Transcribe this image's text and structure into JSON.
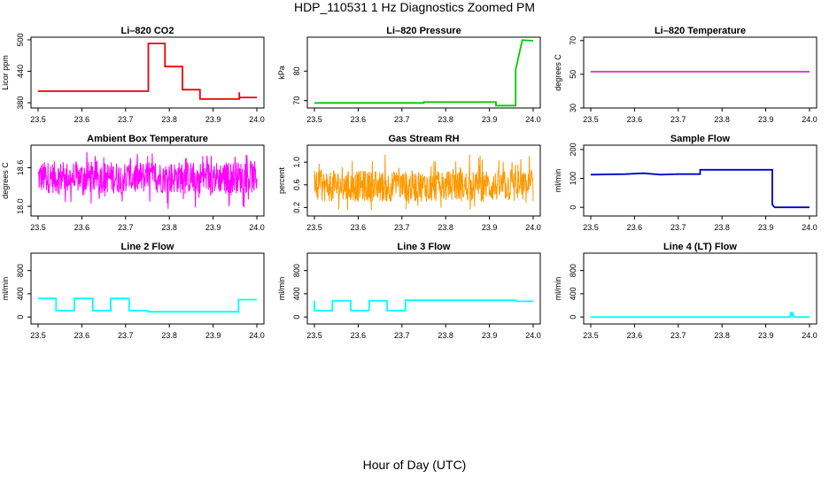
{
  "page": {
    "title": "HDP_110531  1 Hz Diagnostics Zoomed PM",
    "xlabel": "Hour of Day (UTC)"
  },
  "chart_data": [
    {
      "type": "line",
      "title": "Li–820 CO2",
      "xlabel": "",
      "ylabel": "Licor ppm",
      "xlim": [
        23.5,
        24.0
      ],
      "ylim": [
        370,
        505
      ],
      "x_ticks": [
        "23.5",
        "23.6",
        "23.7",
        "23.8",
        "23.9",
        "24.0"
      ],
      "y_ticks": [
        "380",
        "440",
        "500"
      ],
      "color": "#ee0000",
      "series": [
        {
          "x": [
            23.5,
            23.752,
            23.752,
            23.79,
            23.79,
            23.83,
            23.83,
            23.87,
            23.87,
            23.96,
            23.96,
            23.96,
            23.96,
            24.0
          ],
          "y": [
            402,
            402,
            493,
            493,
            449,
            449,
            405,
            405,
            387,
            387,
            400,
            393,
            390,
            390
          ]
        }
      ]
    },
    {
      "type": "line",
      "title": "Li–820 Pressure",
      "xlabel": "",
      "ylabel": "kPa",
      "xlim": [
        23.5,
        24.0
      ],
      "ylim": [
        67.5,
        91.5
      ],
      "x_ticks": [
        "23.5",
        "23.6",
        "23.7",
        "23.8",
        "23.9",
        "24.0"
      ],
      "y_ticks": [
        "70",
        "80"
      ],
      "color": "#00cc00",
      "series": [
        {
          "x": [
            23.5,
            23.75,
            23.75,
            23.915,
            23.915,
            23.96,
            23.96,
            23.975,
            24.0
          ],
          "y": [
            69.2,
            69.2,
            69.5,
            69.5,
            68.3,
            68.3,
            80.5,
            90.5,
            90.3
          ]
        }
      ]
    },
    {
      "type": "line",
      "title": "Li–820 Temperature",
      "xlabel": "",
      "ylabel": "degrees C",
      "xlim": [
        23.5,
        24.0
      ],
      "ylim": [
        30,
        72
      ],
      "x_ticks": [
        "23.5",
        "23.6",
        "23.7",
        "23.8",
        "23.9",
        "24.0"
      ],
      "y_ticks": [
        "30",
        "50",
        "70"
      ],
      "color": "#cc33cc",
      "series": [
        {
          "x": [
            23.5,
            24.0
          ],
          "y": [
            51.5,
            51.5
          ]
        }
      ]
    },
    {
      "type": "line",
      "title": "Ambient Box Temperature",
      "xlabel": "",
      "ylabel": "degrees C",
      "xlim": [
        23.5,
        24.0
      ],
      "ylim": [
        17.85,
        18.95
      ],
      "x_ticks": [
        "23.5",
        "23.6",
        "23.7",
        "23.8",
        "23.9",
        "24.0"
      ],
      "y_ticks": [
        "18.0",
        "18.6"
      ],
      "color": "#ff00ff",
      "noise": {
        "center": 18.45,
        "band": [
          18.2,
          18.7
        ],
        "extent": [
          17.95,
          18.85
        ]
      }
    },
    {
      "type": "line",
      "title": "Gas Stream RH",
      "xlabel": "",
      "ylabel": "percent",
      "xlim": [
        23.5,
        24.0
      ],
      "ylim": [
        0.05,
        1.3
      ],
      "x_ticks": [
        "23.5",
        "23.6",
        "23.7",
        "23.8",
        "23.9",
        "24.0"
      ],
      "y_ticks": [
        "0.2",
        "0.6",
        "1.0"
      ],
      "color": "#ff9900",
      "noise": {
        "center": 0.55,
        "band": [
          0.3,
          0.85
        ],
        "extent": [
          0.15,
          1.15
        ]
      }
    },
    {
      "type": "line",
      "title": "Sample Flow",
      "xlabel": "",
      "ylabel": "ml/min",
      "xlim": [
        23.5,
        24.0
      ],
      "ylim": [
        -30,
        215
      ],
      "x_ticks": [
        "23.5",
        "23.6",
        "23.7",
        "23.8",
        "23.9",
        "24.0"
      ],
      "y_ticks": [
        "0",
        "100",
        "200"
      ],
      "color": "#0000cc",
      "series": [
        {
          "x": [
            23.5,
            23.58,
            23.62,
            23.66,
            23.7,
            23.75,
            23.75,
            23.915,
            23.915,
            23.92,
            24.0
          ],
          "y": [
            113,
            115,
            118,
            113,
            115,
            115,
            130,
            130,
            10,
            0,
            0
          ]
        }
      ]
    },
    {
      "type": "line",
      "title": "Line 2 Flow",
      "xlabel": "",
      "ylabel": "ml/min",
      "xlim": [
        23.5,
        24.0
      ],
      "ylim": [
        -120,
        1100
      ],
      "x_ticks": [
        "23.5",
        "23.6",
        "23.7",
        "23.8",
        "23.9",
        "24.0"
      ],
      "y_ticks": [
        "0",
        "400",
        "800"
      ],
      "color": "#00ffff",
      "series": [
        {
          "x": [
            23.5,
            23.541,
            23.541,
            23.583,
            23.583,
            23.625,
            23.625,
            23.666,
            23.666,
            23.708,
            23.708,
            23.75,
            23.75,
            23.958,
            23.958,
            24.0
          ],
          "y": [
            320,
            320,
            110,
            110,
            320,
            320,
            110,
            110,
            320,
            320,
            110,
            110,
            90,
            90,
            300,
            300
          ]
        }
      ]
    },
    {
      "type": "line",
      "title": "Line 3 Flow",
      "xlabel": "",
      "ylabel": "ml/min",
      "xlim": [
        23.5,
        24.0
      ],
      "ylim": [
        -120,
        1100
      ],
      "x_ticks": [
        "23.5",
        "23.6",
        "23.7",
        "23.8",
        "23.9",
        "24.0"
      ],
      "y_ticks": [
        "0",
        "400",
        "800"
      ],
      "color": "#00ffff",
      "series": [
        {
          "x": [
            23.5,
            23.5,
            23.541,
            23.541,
            23.583,
            23.583,
            23.625,
            23.625,
            23.666,
            23.666,
            23.708,
            23.708,
            23.96,
            23.96,
            24.0
          ],
          "y": [
            280,
            110,
            110,
            280,
            280,
            110,
            110,
            280,
            280,
            110,
            110,
            290,
            290,
            270,
            270
          ]
        }
      ]
    },
    {
      "type": "line",
      "title": "Line 4 (LT) Flow",
      "xlabel": "",
      "ylabel": "ml/min",
      "xlim": [
        23.5,
        24.0
      ],
      "ylim": [
        -120,
        1100
      ],
      "x_ticks": [
        "23.5",
        "23.6",
        "23.7",
        "23.8",
        "23.9",
        "24.0"
      ],
      "y_ticks": [
        "0",
        "400",
        "800"
      ],
      "color": "#00ffff",
      "series": [
        {
          "x": [
            23.5,
            23.955,
            23.958,
            23.96,
            23.962,
            23.965,
            24.0
          ],
          "y": [
            0,
            0,
            90,
            0,
            60,
            0,
            0
          ]
        }
      ]
    }
  ]
}
